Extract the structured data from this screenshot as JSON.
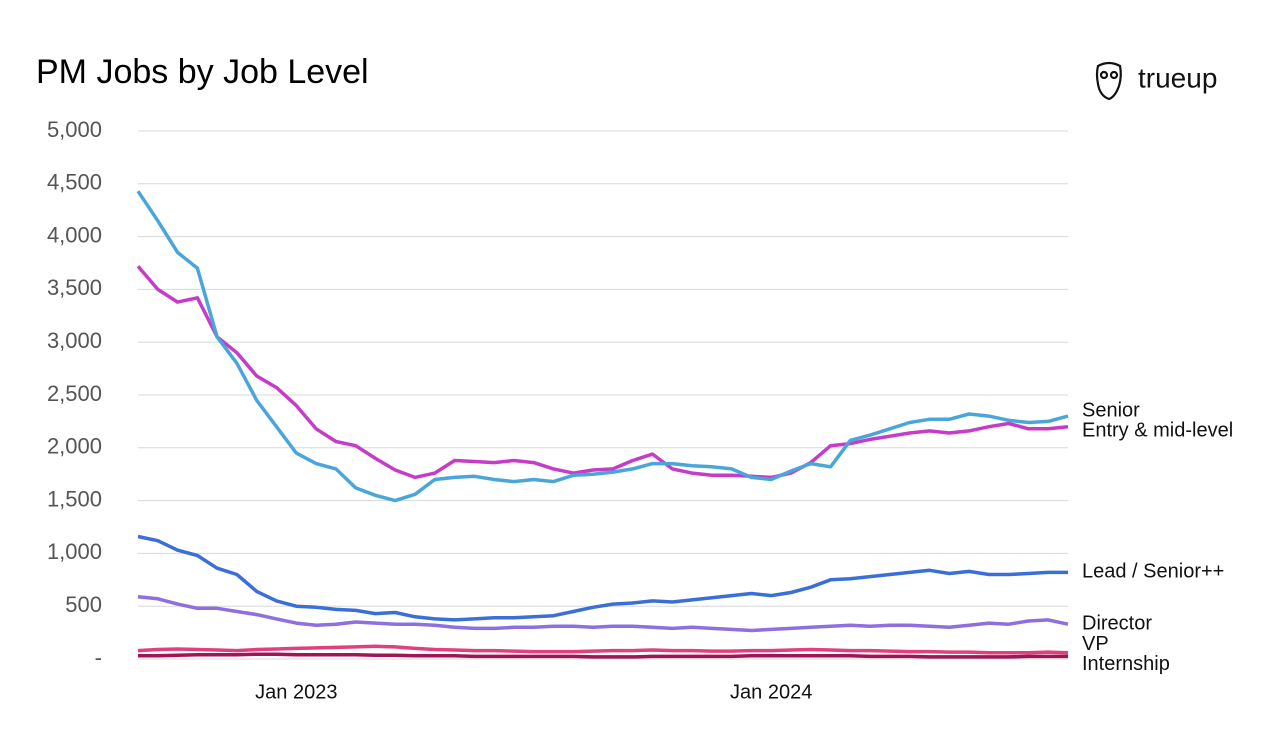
{
  "chart_data": {
    "type": "line",
    "title": "PM Jobs by Job Level",
    "logo": "trueup",
    "categories": [
      null,
      null,
      null,
      null,
      null,
      null,
      null,
      null,
      "Jan 2023",
      null,
      null,
      null,
      null,
      null,
      null,
      null,
      null,
      null,
      null,
      null,
      null,
      null,
      null,
      null,
      null,
      null,
      null,
      null,
      null,
      null,
      null,
      null,
      "Jan 2024",
      null,
      null,
      null,
      null,
      null,
      null,
      null,
      null,
      null,
      null,
      null,
      null,
      null,
      null,
      null
    ],
    "ylim": [
      0,
      5000
    ],
    "yticks": [
      {
        "value": 0,
        "label": "-"
      },
      500,
      {
        "value": 1000,
        "label": "1,000"
      },
      {
        "value": 1500,
        "label": "1,500"
      },
      {
        "value": 2000,
        "label": "2,000"
      },
      {
        "value": 2500,
        "label": "2,500"
      },
      {
        "value": 3000,
        "label": "3,000"
      },
      {
        "value": 3500,
        "label": "3,500"
      },
      {
        "value": 4000,
        "label": "4,000"
      },
      {
        "value": 4500,
        "label": "4,500"
      },
      {
        "value": 5000,
        "label": "5,000"
      }
    ],
    "grid": true,
    "series": [
      {
        "name": "Internship",
        "color": "#9e1656",
        "values": [
          30,
          30,
          35,
          40,
          40,
          40,
          45,
          45,
          40,
          40,
          40,
          40,
          35,
          35,
          30,
          30,
          30,
          25,
          25,
          25,
          25,
          25,
          25,
          20,
          20,
          20,
          25,
          25,
          25,
          25,
          25,
          30,
          30,
          30,
          30,
          30,
          30,
          25,
          25,
          25,
          20,
          20,
          20,
          20,
          20,
          25,
          25,
          25
        ]
      },
      {
        "name": "VP",
        "color": "#e0407e",
        "values": [
          80,
          90,
          95,
          90,
          85,
          80,
          90,
          95,
          100,
          105,
          110,
          115,
          120,
          115,
          100,
          90,
          85,
          80,
          80,
          75,
          70,
          70,
          70,
          75,
          80,
          80,
          85,
          80,
          80,
          75,
          75,
          80,
          80,
          85,
          90,
          85,
          80,
          80,
          75,
          70,
          70,
          65,
          65,
          60,
          60,
          60,
          65,
          60
        ]
      },
      {
        "name": "Director",
        "color": "#8e6fe0",
        "values": [
          590,
          570,
          520,
          480,
          480,
          450,
          420,
          380,
          340,
          320,
          330,
          350,
          340,
          330,
          330,
          320,
          300,
          290,
          290,
          300,
          300,
          310,
          310,
          300,
          310,
          310,
          300,
          290,
          300,
          290,
          280,
          270,
          280,
          290,
          300,
          310,
          320,
          310,
          320,
          320,
          310,
          300,
          320,
          340,
          330,
          360,
          370,
          330
        ]
      },
      {
        "name": "Lead / Senior++",
        "color": "#3a6fd8",
        "values": [
          1160,
          1120,
          1030,
          980,
          860,
          800,
          640,
          550,
          500,
          490,
          470,
          460,
          430,
          440,
          400,
          380,
          370,
          380,
          390,
          390,
          400,
          410,
          450,
          490,
          520,
          530,
          550,
          540,
          560,
          580,
          600,
          620,
          600,
          630,
          680,
          750,
          760,
          780,
          800,
          820,
          840,
          810,
          830,
          800,
          800,
          810,
          820,
          820
        ]
      },
      {
        "name": "Entry & mid-level",
        "color": "#c63cc8",
        "values": [
          3720,
          3500,
          3380,
          3420,
          3050,
          2900,
          2680,
          2570,
          2400,
          2180,
          2060,
          2020,
          1900,
          1790,
          1720,
          1760,
          1880,
          1870,
          1860,
          1880,
          1860,
          1800,
          1760,
          1790,
          1800,
          1880,
          1940,
          1800,
          1760,
          1740,
          1740,
          1730,
          1720,
          1760,
          1860,
          2020,
          2040,
          2080,
          2110,
          2140,
          2160,
          2140,
          2160,
          2200,
          2230,
          2180,
          2180,
          2200
        ]
      },
      {
        "name": "Senior",
        "color": "#4aa6da",
        "values": [
          4430,
          4150,
          3850,
          3700,
          3050,
          2800,
          2450,
          2200,
          1950,
          1850,
          1800,
          1620,
          1550,
          1500,
          1560,
          1700,
          1720,
          1730,
          1700,
          1680,
          1700,
          1680,
          1740,
          1750,
          1770,
          1800,
          1850,
          1850,
          1830,
          1820,
          1800,
          1720,
          1700,
          1780,
          1850,
          1820,
          2070,
          2120,
          2180,
          2240,
          2270,
          2270,
          2320,
          2300,
          2260,
          2240,
          2250,
          2300
        ]
      }
    ]
  }
}
